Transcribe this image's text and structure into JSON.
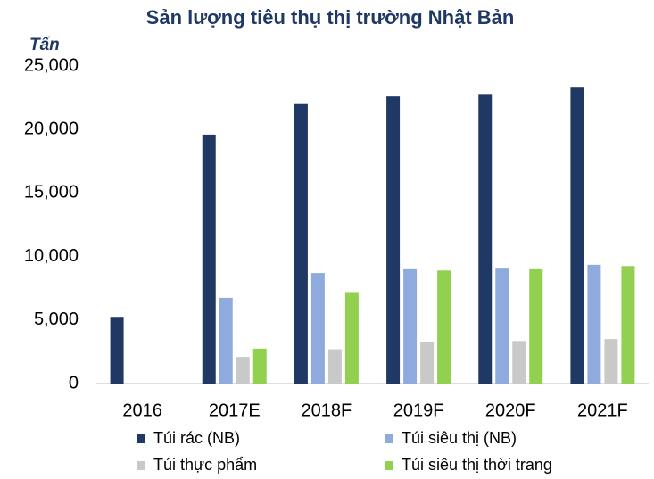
{
  "chart_data": {
    "type": "bar",
    "title": "Sản lượng tiêu thụ thị trường Nhật Bản",
    "y_label": "Tấn",
    "categories": [
      "2016",
      "2017E",
      "2018F",
      "2019F",
      "2020F",
      "2021F"
    ],
    "series": [
      {
        "name": "Túi rác (NB)",
        "color": "#1f3864",
        "values": [
          5250,
          19600,
          22000,
          22600,
          22800,
          23300
        ]
      },
      {
        "name": "Túi siêu thị (NB)",
        "color": "#8faadc",
        "values": [
          null,
          6750,
          8700,
          9000,
          9050,
          9350
        ]
      },
      {
        "name": "Túi thực phẩm",
        "color": "#c9c9c9",
        "values": [
          null,
          2100,
          2700,
          3300,
          3350,
          3500
        ]
      },
      {
        "name": "Túi siêu thị thời trang",
        "color": "#92d050",
        "values": [
          null,
          2750,
          7200,
          8900,
          9000,
          9250
        ]
      }
    ],
    "ylim": [
      0,
      25000
    ],
    "yticks": [
      0,
      {
        "value": 5000,
        "label": "5,000"
      },
      {
        "value": 10000,
        "label": "10,000"
      },
      {
        "value": 15000,
        "label": "15,000"
      },
      {
        "value": 20000,
        "label": "20,000"
      },
      {
        "value": 25000,
        "label": "25,000"
      }
    ],
    "grid": false,
    "legend": "bottom"
  }
}
